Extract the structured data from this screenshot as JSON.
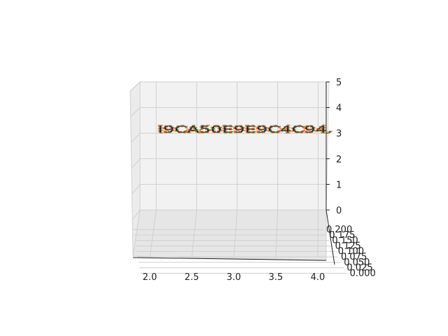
{
  "chart_data": {
    "type": "line",
    "projection": "3d",
    "title": "",
    "xlabel": "",
    "ylabel": "",
    "zlabel": "",
    "grid": true,
    "legend": "none",
    "x_ticks": [
      "2.0",
      "2.5",
      "3.0",
      "3.5",
      "4.0"
    ],
    "y_ticks": [
      "0.000",
      "0.025",
      "0.050",
      "0.075",
      "0.100",
      "0.125",
      "0.150",
      "0.175",
      "0.200"
    ],
    "z_ticks": [
      "0",
      "1",
      "2",
      "3",
      "4",
      "5"
    ],
    "xlim": [
      1.8,
      4.1
    ],
    "ylim": [
      0.0,
      0.2
    ],
    "zlim": [
      0,
      5
    ],
    "curve_label": "I9CA50E9E9C4C94.",
    "series": [
      {
        "color": "#e07b39",
        "marker_color": "#5f8a5a",
        "style": "dotted-marker"
      }
    ]
  }
}
